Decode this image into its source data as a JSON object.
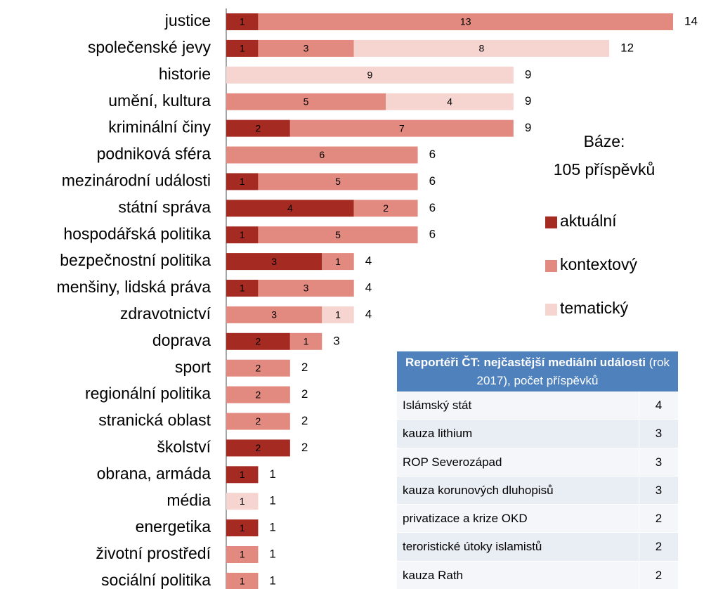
{
  "chart_data": {
    "type": "stacked-barh",
    "categories": [
      "justice",
      "společenské jevy",
      "historie",
      "umění, kultura",
      "kriminální činy",
      "podniková sféra",
      "mezinárodní události",
      "státní správa",
      "hospodářská politika",
      "bezpečnostní politika",
      "menšiny, lidská práva",
      "zdravotnictví",
      "doprava",
      "sport",
      "regionální politika",
      "stranická oblast",
      "školství",
      "obrana, armáda",
      "média",
      "energetika",
      "životní prostředí",
      "sociální politika"
    ],
    "series": [
      {
        "name": "aktuální",
        "color": "#a52a21",
        "values": [
          1,
          1,
          null,
          null,
          2,
          null,
          1,
          4,
          1,
          3,
          1,
          null,
          2,
          null,
          null,
          null,
          2,
          1,
          null,
          1,
          null,
          null
        ]
      },
      {
        "name": "kontextový",
        "color": "#e38a80",
        "values": [
          13,
          3,
          null,
          5,
          7,
          6,
          5,
          2,
          5,
          1,
          3,
          3,
          1,
          2,
          2,
          2,
          null,
          null,
          null,
          null,
          1,
          1
        ]
      },
      {
        "name": "tematický",
        "color": "#f6d4d0",
        "values": [
          null,
          8,
          9,
          4,
          null,
          null,
          null,
          null,
          null,
          null,
          null,
          1,
          null,
          null,
          null,
          null,
          null,
          null,
          1,
          null,
          null,
          null
        ]
      }
    ],
    "totals": [
      14,
      12,
      9,
      9,
      9,
      6,
      6,
      6,
      6,
      4,
      4,
      4,
      3,
      2,
      2,
      2,
      2,
      1,
      1,
      1,
      1,
      1
    ],
    "xlim": [
      0,
      14
    ],
    "base_label": "Báze:",
    "base_value": "105 příspěvků"
  },
  "table": {
    "title_bold": "Reportéři ČT: nejčastější mediální události",
    "title_rest": "(rok 2017), počet příspěvků",
    "rows": [
      [
        "Islámský stát",
        4
      ],
      [
        "kauza lithium",
        3
      ],
      [
        "ROP Severozápad",
        3
      ],
      [
        "kauza korunových dluhopisů",
        3
      ],
      [
        "privatizace a krize OKD",
        2
      ],
      [
        "teroristické útoky islamistů",
        2
      ],
      [
        "kauza Rath",
        2
      ]
    ]
  }
}
